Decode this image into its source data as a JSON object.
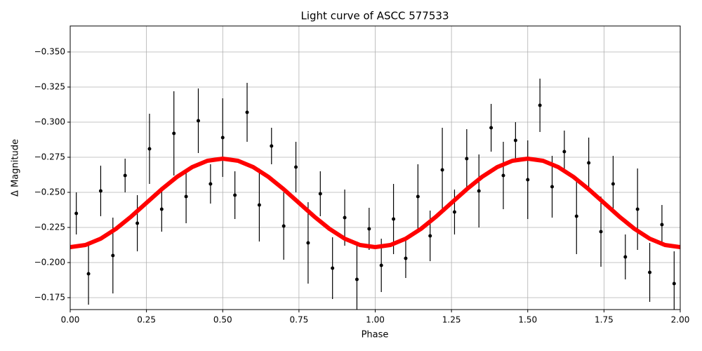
{
  "chart_data": {
    "type": "scatter",
    "title": "Light curve of ASCC 577533",
    "x_label": "Phase",
    "y_label": "Δ Magnitude",
    "xlim": [
      0,
      2
    ],
    "ylim": [
      -0.1665,
      -0.3685
    ],
    "xticks": [
      {
        "value": 0,
        "label": "0.00"
      },
      {
        "value": 0.25,
        "label": "0.25"
      },
      {
        "value": 0.5,
        "label": "0.50"
      },
      {
        "value": 0.75,
        "label": "0.75"
      },
      {
        "value": 1,
        "label": "1.00"
      },
      {
        "value": 1.25,
        "label": "1.25"
      },
      {
        "value": 1.5,
        "label": "1.50"
      },
      {
        "value": 1.75,
        "label": "1.75"
      },
      {
        "value": 2,
        "label": "2.00"
      }
    ],
    "yticks": [
      {
        "value": -0.35,
        "label": "−0.350"
      },
      {
        "value": -0.325,
        "label": "−0.325"
      },
      {
        "value": -0.3,
        "label": "−0.300"
      },
      {
        "value": -0.275,
        "label": "−0.275"
      },
      {
        "value": -0.25,
        "label": "−0.250"
      },
      {
        "value": -0.225,
        "label": "−0.225"
      },
      {
        "value": -0.2,
        "label": "−0.200"
      },
      {
        "value": -0.175,
        "label": "−0.175"
      }
    ],
    "grid": true,
    "series": [
      {
        "color": "#000000",
        "x": [
          0.02,
          0.06,
          0.1,
          0.14,
          0.18,
          0.22,
          0.26,
          0.3,
          0.34,
          0.38,
          0.42,
          0.46,
          0.5,
          0.54,
          0.58,
          0.62,
          0.66,
          0.7,
          0.74,
          0.78,
          0.82,
          0.86,
          0.9,
          0.94,
          0.98,
          1.02,
          1.06,
          1.1,
          1.14,
          1.18,
          1.22,
          1.26,
          1.3,
          1.34,
          1.38,
          1.42,
          1.46,
          1.5,
          1.54,
          1.58,
          1.62,
          1.66,
          1.7,
          1.74,
          1.78,
          1.82,
          1.86,
          1.9,
          1.94,
          1.98
        ],
        "values": [
          -0.235,
          -0.192,
          -0.251,
          -0.205,
          -0.262,
          -0.228,
          -0.281,
          -0.238,
          -0.292,
          -0.247,
          -0.301,
          -0.256,
          -0.289,
          -0.248,
          -0.307,
          -0.241,
          -0.283,
          -0.226,
          -0.268,
          -0.214,
          -0.249,
          -0.196,
          -0.232,
          -0.188,
          -0.224,
          -0.198,
          -0.231,
          -0.203,
          -0.247,
          -0.219,
          -0.266,
          -0.236,
          -0.274,
          -0.251,
          -0.296,
          -0.262,
          -0.287,
          -0.259,
          -0.312,
          -0.254,
          -0.279,
          -0.233,
          -0.271,
          -0.222,
          -0.256,
          -0.204,
          -0.238,
          -0.193,
          -0.227,
          -0.185
        ],
        "errors": [
          0.015,
          0.022,
          0.018,
          0.027,
          0.012,
          0.02,
          0.025,
          0.016,
          0.03,
          0.019,
          0.023,
          0.014,
          0.028,
          0.017,
          0.021,
          0.026,
          0.013,
          0.024,
          0.018,
          0.029,
          0.016,
          0.022,
          0.02,
          0.027,
          0.015,
          0.019,
          0.025,
          0.014,
          0.023,
          0.018,
          0.03,
          0.016,
          0.021,
          0.026,
          0.017,
          0.024,
          0.013,
          0.028,
          0.019,
          0.022,
          0.015,
          0.027,
          0.018,
          0.025,
          0.02,
          0.016,
          0.029,
          0.021,
          0.014,
          0.023
        ]
      },
      {
        "color": "#ff0000",
        "connect": true,
        "x": [
          0,
          0.05,
          0.1,
          0.15,
          0.2,
          0.25,
          0.3,
          0.35,
          0.4,
          0.45,
          0.5,
          0.55,
          0.6,
          0.65,
          0.7,
          0.75,
          0.8,
          0.85,
          0.9,
          0.95,
          1,
          1.05,
          1.1,
          1.15,
          1.2,
          1.25,
          1.3,
          1.35,
          1.4,
          1.45,
          1.5,
          1.55,
          1.6,
          1.65,
          1.7,
          1.75,
          1.8,
          1.85,
          1.9,
          1.95,
          2
        ],
        "values": [
          -0.211,
          -0.2125,
          -0.217,
          -0.224,
          -0.2328,
          -0.2425,
          -0.2522,
          -0.261,
          -0.268,
          -0.2725,
          -0.274,
          -0.2725,
          -0.268,
          -0.261,
          -0.2522,
          -0.2425,
          -0.2328,
          -0.224,
          -0.217,
          -0.2125,
          -0.211,
          -0.2125,
          -0.217,
          -0.224,
          -0.2328,
          -0.2425,
          -0.2522,
          -0.261,
          -0.268,
          -0.2725,
          -0.274,
          -0.2725,
          -0.268,
          -0.261,
          -0.2522,
          -0.2425,
          -0.2328,
          -0.224,
          -0.217,
          -0.2125,
          -0.211
        ]
      }
    ]
  }
}
